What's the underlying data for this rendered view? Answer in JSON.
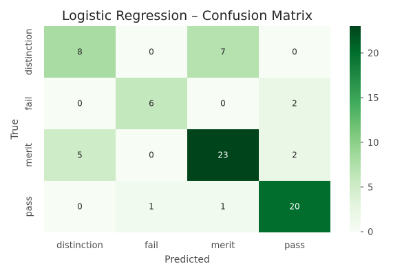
{
  "chart_data": {
    "type": "heatmap",
    "title": "Logistic Regression – Confusion Matrix",
    "xlabel": "Predicted",
    "ylabel": "True",
    "x_categories": [
      "distinction",
      "fail",
      "merit",
      "pass"
    ],
    "y_categories": [
      "distinction",
      "fail",
      "merit",
      "pass"
    ],
    "values": [
      [
        8,
        0,
        7,
        0
      ],
      [
        0,
        6,
        0,
        2
      ],
      [
        5,
        0,
        23,
        2
      ],
      [
        0,
        1,
        1,
        20
      ]
    ],
    "colorbar": {
      "min": 0,
      "max": 23,
      "ticks": [
        0,
        5,
        10,
        15,
        20
      ],
      "colormap": "Greens"
    }
  }
}
